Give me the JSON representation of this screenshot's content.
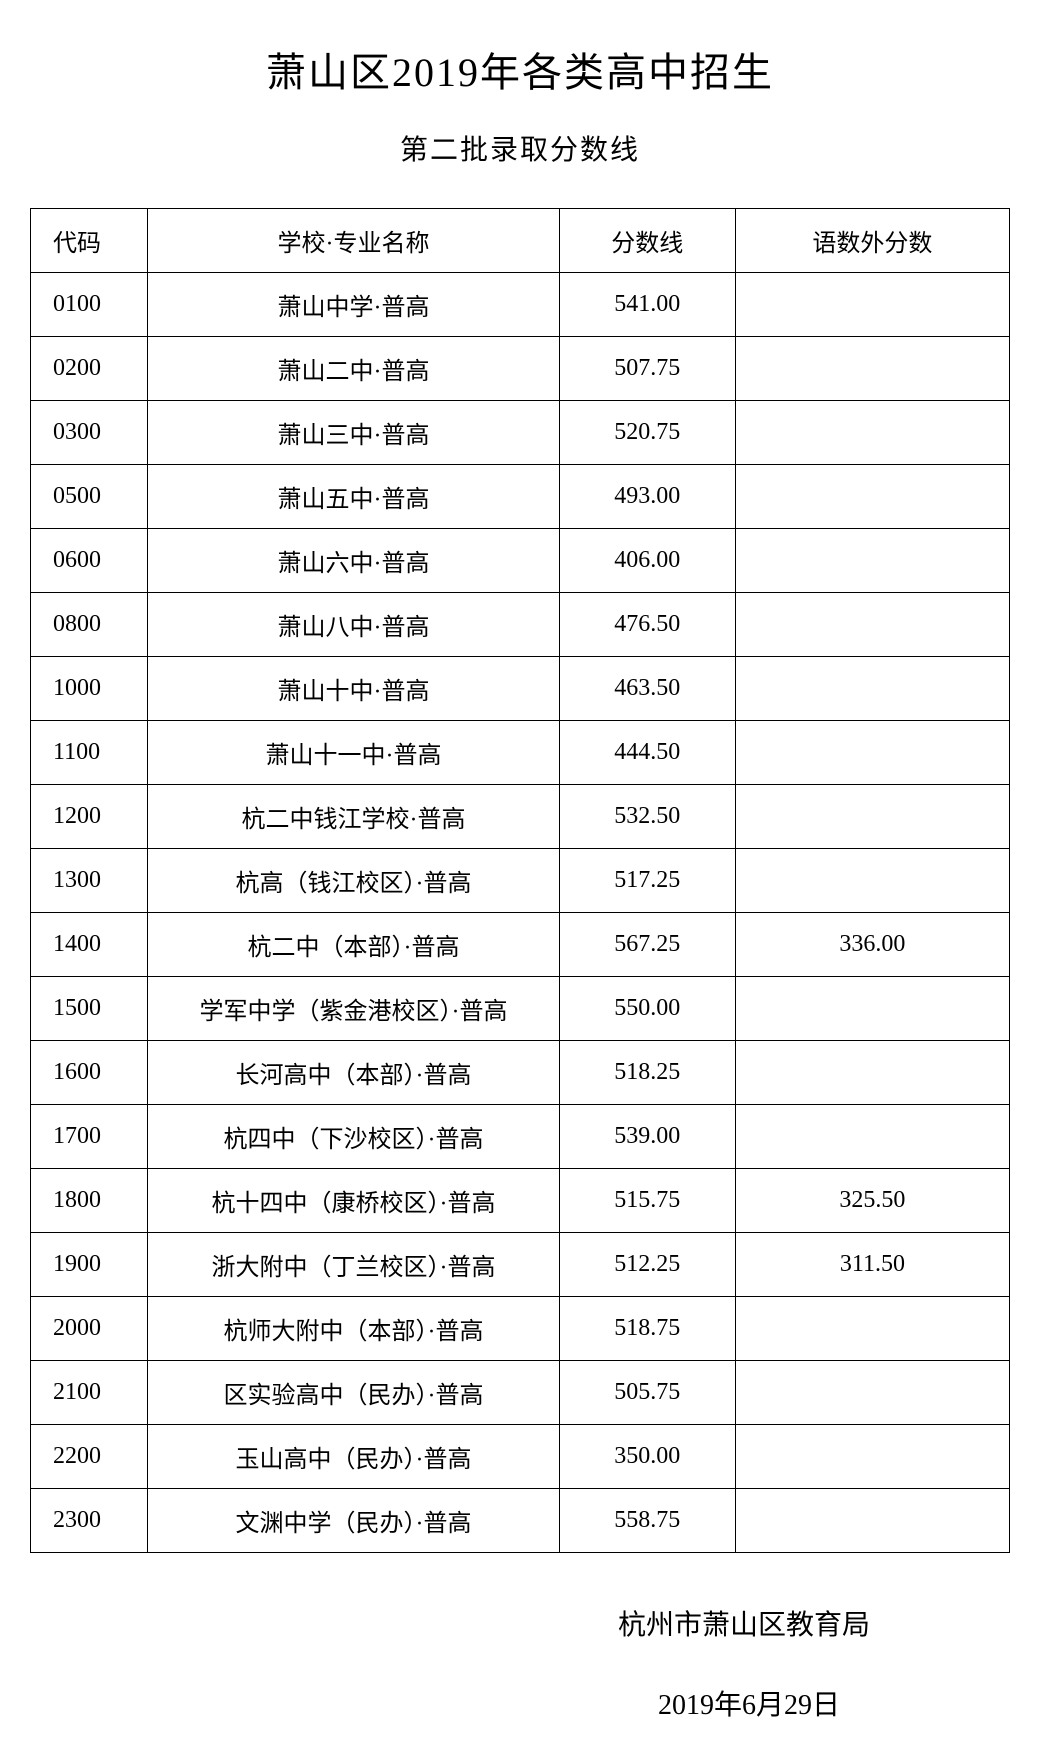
{
  "title": "萧山区2019年各类高中招生",
  "subtitle": "第二批录取分数线",
  "table": {
    "columns": {
      "code": "代码",
      "name": "学校·专业名称",
      "score": "分数线",
      "subject_score": "语数外分数"
    },
    "rows": [
      {
        "code": "0100",
        "name": "萧山中学·普高",
        "score": "541.00",
        "subject_score": ""
      },
      {
        "code": "0200",
        "name": "萧山二中·普高",
        "score": "507.75",
        "subject_score": ""
      },
      {
        "code": "0300",
        "name": "萧山三中·普高",
        "score": "520.75",
        "subject_score": ""
      },
      {
        "code": "0500",
        "name": "萧山五中·普高",
        "score": "493.00",
        "subject_score": ""
      },
      {
        "code": "0600",
        "name": "萧山六中·普高",
        "score": "406.00",
        "subject_score": ""
      },
      {
        "code": "0800",
        "name": "萧山八中·普高",
        "score": "476.50",
        "subject_score": ""
      },
      {
        "code": "1000",
        "name": "萧山十中·普高",
        "score": "463.50",
        "subject_score": ""
      },
      {
        "code": "1100",
        "name": "萧山十一中·普高",
        "score": "444.50",
        "subject_score": ""
      },
      {
        "code": "1200",
        "name": "杭二中钱江学校·普高",
        "score": "532.50",
        "subject_score": ""
      },
      {
        "code": "1300",
        "name": "杭高（钱江校区）·普高",
        "score": "517.25",
        "subject_score": ""
      },
      {
        "code": "1400",
        "name": "杭二中（本部）·普高",
        "score": "567.25",
        "subject_score": "336.00"
      },
      {
        "code": "1500",
        "name": "学军中学（紫金港校区）·普高",
        "score": "550.00",
        "subject_score": ""
      },
      {
        "code": "1600",
        "name": "长河高中（本部）·普高",
        "score": "518.25",
        "subject_score": ""
      },
      {
        "code": "1700",
        "name": "杭四中（下沙校区）·普高",
        "score": "539.00",
        "subject_score": ""
      },
      {
        "code": "1800",
        "name": "杭十四中（康桥校区）·普高",
        "score": "515.75",
        "subject_score": "325.50"
      },
      {
        "code": "1900",
        "name": "浙大附中（丁兰校区）·普高",
        "score": "512.25",
        "subject_score": "311.50"
      },
      {
        "code": "2000",
        "name": "杭师大附中（本部）·普高",
        "score": "518.75",
        "subject_score": ""
      },
      {
        "code": "2100",
        "name": "区实验高中（民办）·普高",
        "score": "505.75",
        "subject_score": ""
      },
      {
        "code": "2200",
        "name": "玉山高中（民办）·普高",
        "score": "350.00",
        "subject_score": ""
      },
      {
        "code": "2300",
        "name": "文渊中学（民办）·普高",
        "score": "558.75",
        "subject_score": ""
      }
    ]
  },
  "footer": {
    "organization": "杭州市萧山区教育局",
    "date": "2019年6月29日"
  },
  "styles": {
    "background_color": "#ffffff",
    "text_color": "#000000",
    "border_color": "#000000",
    "title_fontsize": 40,
    "subtitle_fontsize": 28,
    "cell_fontsize": 24,
    "footer_fontsize": 28,
    "col_widths": {
      "code": "12%",
      "name": "42%",
      "score": "18%",
      "subject_score": "28%"
    }
  }
}
